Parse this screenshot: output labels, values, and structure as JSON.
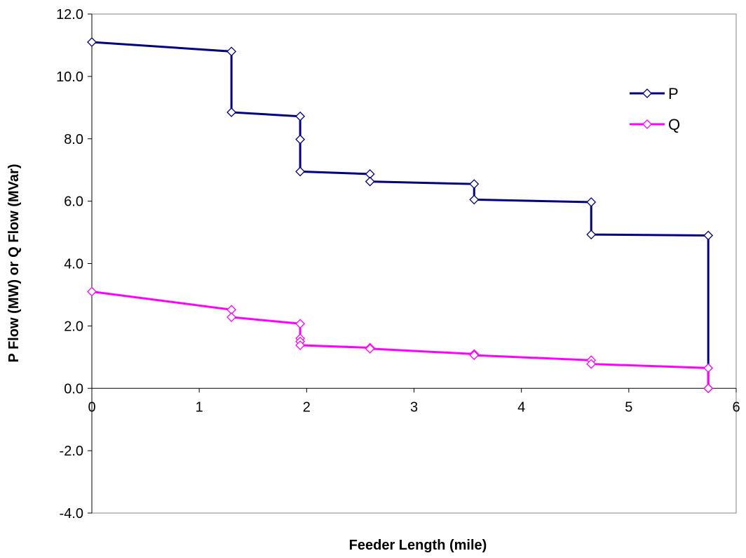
{
  "chart_data": {
    "type": "line",
    "title": "",
    "xlabel": "Feeder Length (mile)",
    "ylabel": "P Flow (MW) or Q Flow (MVar)",
    "xlim": [
      0,
      6
    ],
    "ylim": [
      -4,
      12
    ],
    "x_ticks": [
      0,
      1,
      2,
      3,
      4,
      5,
      6
    ],
    "x_tick_labels": [
      "0",
      "1",
      "2",
      "3",
      "4",
      "5",
      "6"
    ],
    "y_ticks": [
      -4,
      -2,
      0,
      2,
      4,
      6,
      8,
      10,
      12
    ],
    "y_tick_labels": [
      "-4.0",
      "-2.0",
      "0.0",
      "2.0",
      "4.0",
      "6.0",
      "8.0",
      "10.0",
      "12.0"
    ],
    "grid": false,
    "legend_position": "top-right",
    "series": [
      {
        "name": "P",
        "color": "#000080",
        "marker": "diamond",
        "points": [
          [
            0,
            11.1
          ],
          [
            1.3,
            10.8
          ],
          [
            1.3,
            8.85
          ],
          [
            1.94,
            8.72
          ],
          [
            1.94,
            7.98
          ],
          [
            1.94,
            6.95
          ],
          [
            2.59,
            6.87
          ],
          [
            2.59,
            6.63
          ],
          [
            3.56,
            6.55
          ],
          [
            3.56,
            6.05
          ],
          [
            4.65,
            5.97
          ],
          [
            4.65,
            4.93
          ],
          [
            5.74,
            4.9
          ],
          [
            5.74,
            0.0
          ]
        ]
      },
      {
        "name": "Q",
        "color": "#FF00FF",
        "marker": "diamond",
        "points": [
          [
            0,
            3.1
          ],
          [
            1.3,
            2.52
          ],
          [
            1.3,
            2.28
          ],
          [
            1.94,
            2.07
          ],
          [
            1.94,
            1.6
          ],
          [
            1.94,
            1.5
          ],
          [
            1.94,
            1.38
          ],
          [
            2.59,
            1.3
          ],
          [
            2.59,
            1.27
          ],
          [
            3.56,
            1.1
          ],
          [
            3.56,
            1.06
          ],
          [
            4.65,
            0.9
          ],
          [
            4.65,
            0.78
          ],
          [
            5.74,
            0.65
          ],
          [
            5.74,
            0.0
          ]
        ]
      }
    ]
  }
}
